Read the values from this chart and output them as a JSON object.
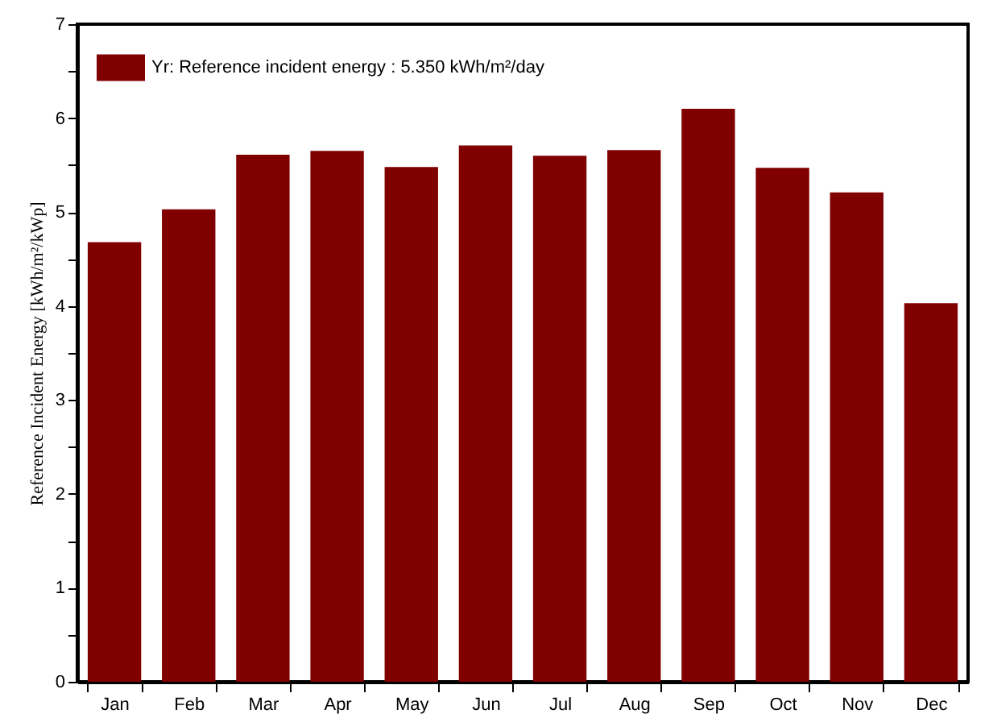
{
  "chart_data": {
    "type": "bar",
    "ylabel": "Reference Incident Energy [kWh/m²/kWp]",
    "categories": [
      "Jan",
      "Feb",
      "Mar",
      "Apr",
      "May",
      "Jun",
      "Jul",
      "Aug",
      "Sep",
      "Oct",
      "Nov",
      "Dec"
    ],
    "series": [
      {
        "name": "Yr: Reference incident energy :  5.350 kWh/m²/day",
        "color": "#800000",
        "values": [
          4.68,
          5.03,
          5.61,
          5.65,
          5.48,
          5.71,
          5.6,
          5.66,
          6.1,
          5.47,
          5.21,
          4.03
        ]
      }
    ],
    "ylim": [
      0,
      7
    ],
    "yticks": [
      0,
      {
        "value": 0.5,
        "label": null
      },
      1,
      {
        "value": 1.5,
        "label": null
      },
      2,
      {
        "value": 2.5,
        "label": null
      },
      3,
      {
        "value": 3.5,
        "label": null
      },
      4,
      {
        "value": 4.5,
        "label": null
      },
      5,
      {
        "value": 5.5,
        "label": null
      },
      6,
      {
        "value": 6.5,
        "label": null
      },
      7
    ],
    "grid": false,
    "legend": "top left"
  }
}
